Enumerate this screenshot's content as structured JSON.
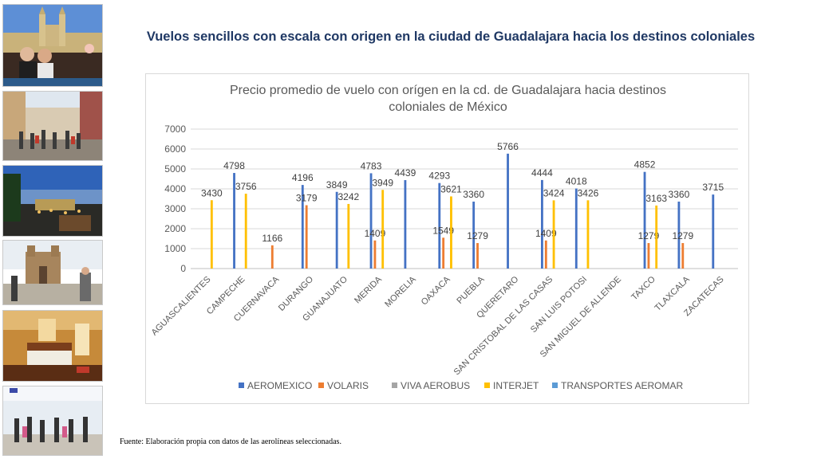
{
  "slide": {
    "title": "Vuelos sencillos con escala con origen en la ciudad de Guadalajara hacia los destinos coloniales",
    "source": "Fuente: Elaboración propia con datos de las aerolíneas seleccionadas."
  },
  "photos": [
    {
      "icon": "cathedral-rooftop-photo"
    },
    {
      "icon": "colonial-street-crowd-photo"
    },
    {
      "icon": "city-night-panorama-photo"
    },
    {
      "icon": "church-plaza-photo"
    },
    {
      "icon": "hotel-room-photo"
    },
    {
      "icon": "shopping-corridor-photo"
    }
  ],
  "chart_data": {
    "type": "bar",
    "title_lines": [
      "Precio promedio de vuelo con orígen en la cd. de Guadalajara hacia destinos",
      "coloniales de México"
    ],
    "categories": [
      "AGUASCALIENTES",
      "CAMPECHE",
      "CUERNAVACA",
      "DURANGO",
      "GUANAJUATO",
      "MERIDA",
      "MORELIA",
      "OAXACA",
      "PUEBLA",
      "QUERETARO",
      "SAN CRISTOBAL DE LAS CASAS",
      "SAN LUIS POTOSI",
      "SAN MIGUEL DE ALLENDE",
      "TAXCO",
      "TLAXCALA",
      "ZACATECAS"
    ],
    "series": [
      {
        "name": "AEROMEXICO",
        "color": "#4472c4",
        "values": [
          null,
          4798,
          null,
          4196,
          3849,
          4783,
          4439,
          4293,
          3360,
          5766,
          4444,
          4018,
          null,
          4852,
          3360,
          3715
        ]
      },
      {
        "name": "VOLARIS",
        "color": "#ed7d31",
        "values": [
          null,
          null,
          1166,
          3179,
          null,
          1409,
          null,
          1549,
          1279,
          null,
          1409,
          null,
          null,
          1279,
          1279,
          null
        ]
      },
      {
        "name": "VIVA AEROBUS",
        "color": "#a5a5a5",
        "values": [
          null,
          null,
          null,
          null,
          null,
          null,
          null,
          null,
          null,
          null,
          null,
          null,
          null,
          null,
          null,
          null
        ]
      },
      {
        "name": "INTERJET",
        "color": "#ffc000",
        "values": [
          3430,
          3756,
          null,
          null,
          3242,
          3949,
          null,
          3621,
          null,
          null,
          3424,
          3426,
          null,
          3163,
          null,
          null
        ]
      },
      {
        "name": "TRANSPORTES AEROMAR",
        "color": "#5b9bd5",
        "values": [
          null,
          null,
          null,
          null,
          null,
          null,
          null,
          null,
          null,
          null,
          null,
          null,
          null,
          null,
          null,
          null
        ]
      }
    ],
    "y_ticks": [
      0,
      1000,
      2000,
      3000,
      4000,
      5000,
      6000,
      7000
    ],
    "ylim": [
      0,
      7000
    ],
    "grid": true,
    "legend": "bottom"
  }
}
